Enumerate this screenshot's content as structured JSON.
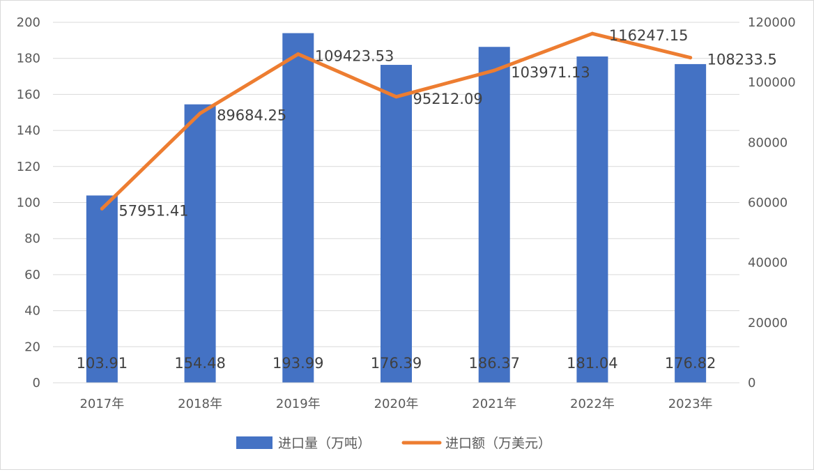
{
  "chart_data": {
    "type": "bar",
    "categories": [
      "2017年",
      "2018年",
      "2019年",
      "2020年",
      "2021年",
      "2022年",
      "2023年"
    ],
    "series": [
      {
        "name": "进口量（万吨）",
        "type": "bar",
        "axis": "left",
        "color": "#4472C4",
        "values": [
          103.91,
          154.48,
          193.99,
          176.39,
          186.37,
          181.04,
          176.82
        ],
        "labels": [
          "103.91",
          "154.48",
          "193.99",
          "176.39",
          "186.37",
          "181.04",
          "176.82"
        ]
      },
      {
        "name": "进口额（万美元）",
        "type": "line",
        "axis": "right",
        "color": "#ED7D31",
        "values": [
          57951.41,
          89684.25,
          109423.53,
          95212.09,
          103971.13,
          116247.15,
          108233.5
        ],
        "labels": [
          "57951.41",
          "89684.25",
          "109423.53",
          "95212.09",
          "103971.13",
          "116247.15",
          "108233.5"
        ]
      }
    ],
    "y_left": {
      "min": 0,
      "max": 200,
      "ticks": [
        "0",
        "20",
        "40",
        "60",
        "80",
        "100",
        "120",
        "140",
        "160",
        "180",
        "200"
      ]
    },
    "y_right": {
      "min": 0,
      "max": 120000,
      "ticks": [
        "0",
        "20000",
        "40000",
        "60000",
        "80000",
        "100000",
        "120000"
      ]
    },
    "grid": true,
    "legend_position": "bottom"
  }
}
